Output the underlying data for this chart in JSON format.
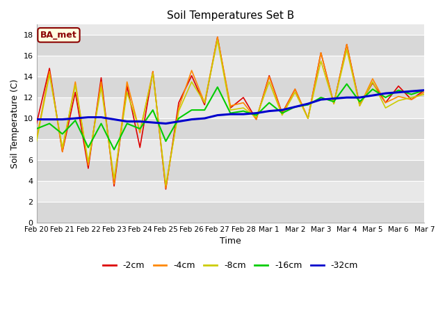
{
  "title": "Soil Temperatures Set B",
  "xlabel": "Time",
  "ylabel": "Soil Temperature (C)",
  "ylim": [
    0,
    19
  ],
  "yticks": [
    0,
    2,
    4,
    6,
    8,
    10,
    12,
    14,
    16,
    18
  ],
  "fig_bg_color": "#ffffff",
  "plot_bg_color": "#e8e8e8",
  "legend_label": "BA_met",
  "legend_box_color": "#ffffe0",
  "legend_box_edge": "#8b0000",
  "line_colors": {
    "-2cm": "#dd0000",
    "-4cm": "#ff8800",
    "-8cm": "#cccc00",
    "-16cm": "#00cc00",
    "-32cm": "#0000cc"
  },
  "line_widths": {
    "-2cm": 1.2,
    "-4cm": 1.2,
    "-8cm": 1.2,
    "-16cm": 1.5,
    "-32cm": 2.2
  },
  "data": {
    "-2cm": [
      9.5,
      14.8,
      6.8,
      12.5,
      5.2,
      13.9,
      3.5,
      13.1,
      7.2,
      14.5,
      3.2,
      11.5,
      14.1,
      11.3,
      17.8,
      11.0,
      12.0,
      9.9,
      14.1,
      10.5,
      12.8,
      10.0,
      16.3,
      11.4,
      17.1,
      11.3,
      13.4,
      11.5,
      13.1,
      11.8,
      12.7
    ],
    "-4cm": [
      8.0,
      14.5,
      6.8,
      13.5,
      5.5,
      13.5,
      3.7,
      13.5,
      8.6,
      14.5,
      3.3,
      11.0,
      14.6,
      11.5,
      17.8,
      11.2,
      11.5,
      9.9,
      14.0,
      10.4,
      12.8,
      10.0,
      16.3,
      11.4,
      17.1,
      11.2,
      13.8,
      11.5,
      12.1,
      11.8,
      12.5
    ],
    "-8cm": [
      7.8,
      14.2,
      7.2,
      13.2,
      5.8,
      13.0,
      4.2,
      12.5,
      8.8,
      14.3,
      3.6,
      10.7,
      13.5,
      11.5,
      17.5,
      10.8,
      11.0,
      10.1,
      13.5,
      10.3,
      12.5,
      10.0,
      15.5,
      11.4,
      16.6,
      11.2,
      13.5,
      11.0,
      11.7,
      12.0,
      12.3
    ],
    "-16cm": [
      9.0,
      9.5,
      8.5,
      9.8,
      7.2,
      9.5,
      7.0,
      9.5,
      9.0,
      10.8,
      7.8,
      10.0,
      10.8,
      10.8,
      13.0,
      10.5,
      10.7,
      10.3,
      11.5,
      10.5,
      11.1,
      11.3,
      12.0,
      11.6,
      13.3,
      11.6,
      12.8,
      12.0,
      12.7,
      12.3,
      12.7
    ],
    "-32cm": [
      9.9,
      9.9,
      9.9,
      10.0,
      10.1,
      10.1,
      9.9,
      9.7,
      9.7,
      9.6,
      9.5,
      9.7,
      9.9,
      10.0,
      10.3,
      10.4,
      10.4,
      10.5,
      10.7,
      10.8,
      11.1,
      11.4,
      11.8,
      11.9,
      12.0,
      12.0,
      12.2,
      12.4,
      12.5,
      12.6,
      12.7
    ]
  },
  "x_positions": [
    0,
    1,
    2,
    3,
    4,
    5,
    6,
    7,
    8,
    9,
    10,
    11,
    12,
    13,
    14,
    15,
    16,
    17,
    18,
    19,
    20,
    21,
    22,
    23,
    24,
    25,
    26,
    27,
    28,
    29,
    30
  ],
  "x_tick_labels": [
    "Feb 20",
    "Feb 21",
    "Feb 22",
    "Feb 23",
    "Feb 24",
    "Feb 25",
    "Feb 26",
    "Feb 27",
    "Feb 28",
    "Mar 1",
    "Mar 2",
    "Mar 3",
    "Mar 4",
    "Mar 5",
    "Mar 6",
    "Mar 7"
  ],
  "x_tick_positions": [
    0,
    2,
    4,
    6,
    8,
    10,
    12,
    14,
    16,
    18,
    20,
    22,
    24,
    26,
    28,
    30
  ],
  "grid_color": "#ffffff",
  "band_colors": [
    "#d8d8d8",
    "#e8e8e8"
  ]
}
